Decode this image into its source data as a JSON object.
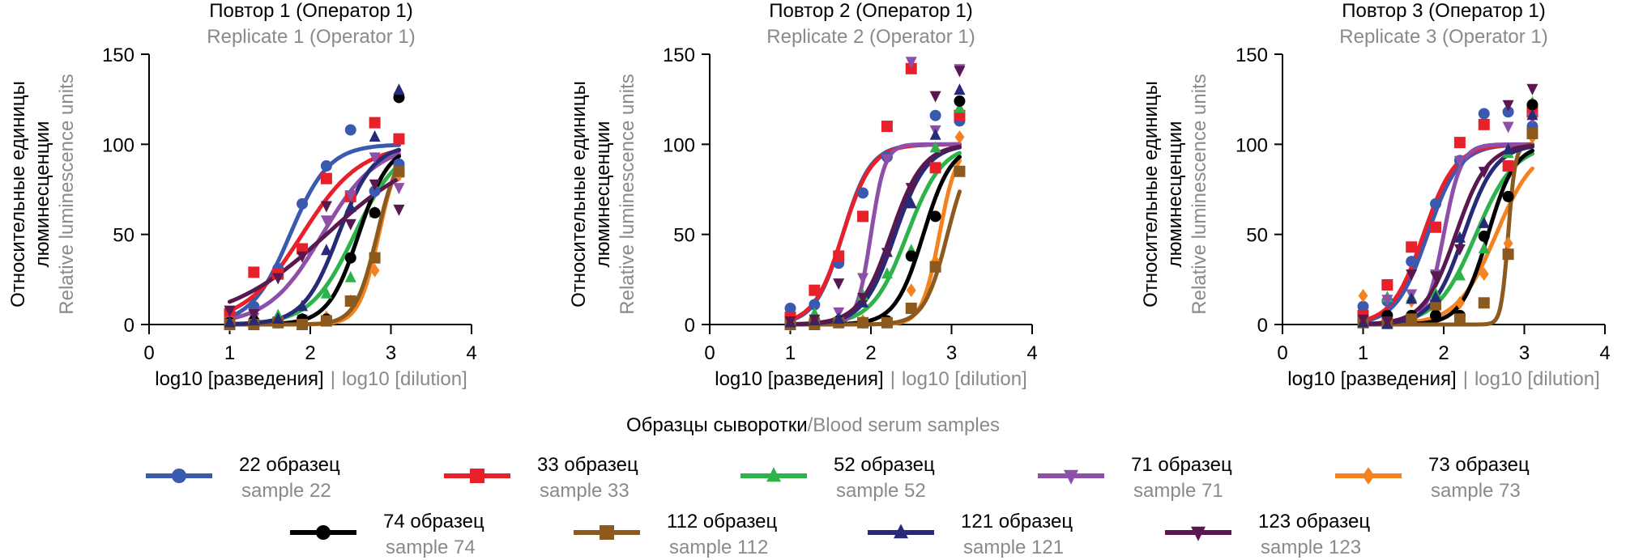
{
  "chart_data": [
    {
      "type": "line",
      "title": "Повтор 1 (Оператор 1)",
      "subtitle": "Replicate 1 (Operator 1)",
      "ylabel": "Относительные единицы люминесценции",
      "ylabel2": "Relative luminescence units",
      "xlabel": "log10 [разведения]",
      "xlabel2": "log10 [dilution]",
      "xlim": [
        0,
        4
      ],
      "ylim": [
        0,
        150
      ],
      "xticks": [
        "0",
        "1",
        "2",
        "3",
        "4"
      ],
      "yticks": [
        "0",
        "50",
        "100",
        "150"
      ],
      "series": [
        {
          "id": "s22",
          "fit": {
            "ec50": 1.75,
            "hill": 1.8
          },
          "x": [
            1,
            1.3,
            1.6,
            1.9,
            2.2,
            2.5,
            2.8,
            3.1
          ],
          "y": [
            3,
            10,
            31,
            67,
            88,
            108,
            74,
            89
          ]
        },
        {
          "id": "s33",
          "fit": {
            "ec50": 1.9,
            "hill": 1.2
          },
          "x": [
            1,
            1.3,
            1.6,
            1.9,
            2.2,
            2.5,
            2.8,
            3.1
          ],
          "y": [
            6,
            29,
            28,
            42,
            81,
            71,
            112,
            103
          ]
        },
        {
          "id": "s52",
          "fit": {
            "ec50": 2.55,
            "hill": 1.6
          },
          "x": [
            1,
            1.3,
            1.6,
            1.9,
            2.2,
            2.5,
            2.8,
            3.1
          ],
          "y": [
            1,
            1,
            5,
            3,
            17,
            26,
            62,
            84
          ]
        },
        {
          "id": "s71",
          "fit": {
            "ec50": 2.15,
            "hill": 1.3
          },
          "x": [
            1,
            1.3,
            1.6,
            1.9,
            2.2,
            2.5,
            2.8,
            3.1
          ],
          "y": [
            2,
            4,
            2,
            3,
            58,
            72,
            93,
            76
          ]
        },
        {
          "id": "s73",
          "fit": {
            "ec50": 2.85,
            "hill": 3.5
          },
          "x": [
            1,
            1.3,
            1.6,
            1.9,
            2.2,
            2.5,
            2.8,
            3.1
          ],
          "y": [
            0,
            1,
            2,
            1,
            4,
            13,
            30,
            83
          ]
        },
        {
          "id": "s74",
          "fit": {
            "ec50": 2.6,
            "hill": 2.3
          },
          "x": [
            1,
            1.3,
            1.6,
            1.9,
            2.2,
            2.5,
            2.8,
            3.1
          ],
          "y": [
            1,
            2,
            1,
            3,
            3,
            37,
            62,
            126
          ]
        },
        {
          "id": "s112",
          "fit": {
            "ec50": 2.83,
            "hill": 3.2
          },
          "x": [
            1,
            1.3,
            1.6,
            1.9,
            2.2,
            2.5,
            2.8,
            3.1
          ],
          "y": [
            0,
            0,
            1,
            0,
            2,
            13,
            37,
            85
          ]
        },
        {
          "id": "s121",
          "fit": {
            "ec50": 2.35,
            "hill": 2.0
          },
          "x": [
            1,
            1.3,
            1.6,
            1.9,
            2.2,
            2.5,
            2.8,
            3.1
          ],
          "y": [
            1,
            2,
            3,
            10,
            41,
            65,
            104,
            130
          ]
        },
        {
          "id": "s123",
          "fit": {
            "ec50": 2.2,
            "hill": 0.7
          },
          "x": [
            1,
            1.3,
            1.6,
            1.9,
            2.2,
            2.5,
            2.8,
            3.1
          ],
          "y": [
            8,
            6,
            26,
            38,
            66,
            56,
            78,
            64
          ]
        }
      ]
    },
    {
      "type": "line",
      "title": "Повтор 2 (Оператор 1)",
      "subtitle": "Replicate 2 (Operator 1)",
      "ylabel": "Относительные единицы люминесценции",
      "ylabel2": "Relative luminescence units",
      "xlabel": "log10 [разведения]",
      "xlabel2": "log10 [dilution]",
      "xlim": [
        0,
        4
      ],
      "ylim": [
        0,
        150
      ],
      "xticks": [
        "0",
        "1",
        "2",
        "3",
        "4"
      ],
      "yticks": [
        "0",
        "50",
        "100",
        "150"
      ],
      "series": [
        {
          "id": "s22",
          "fit": {
            "ec50": 1.65,
            "hill": 2.5
          },
          "x": [
            1,
            1.3,
            1.6,
            1.9,
            2.2,
            2.5,
            2.8,
            3.1
          ],
          "y": [
            9,
            11,
            34,
            73,
            93,
            null,
            116,
            113
          ]
        },
        {
          "id": "s33",
          "fit": {
            "ec50": 1.65,
            "hill": 2.4
          },
          "x": [
            1,
            1.3,
            1.6,
            1.9,
            2.2,
            2.5,
            2.8,
            3.1
          ],
          "y": [
            4,
            19,
            38,
            60,
            110,
            142,
            87,
            116
          ]
        },
        {
          "id": "s52",
          "fit": {
            "ec50": 2.45,
            "hill": 2.0
          },
          "x": [
            1,
            1.3,
            1.6,
            1.9,
            2.2,
            2.5,
            2.8,
            3.1
          ],
          "y": [
            0,
            6,
            4,
            16,
            28,
            41,
            98,
            120
          ]
        },
        {
          "id": "s71",
          "fit": {
            "ec50": 2.0,
            "hill": 5.0
          },
          "x": [
            1,
            1.3,
            1.6,
            1.9,
            2.2,
            2.5,
            2.8,
            3.1
          ],
          "y": [
            2,
            1,
            7,
            26,
            92,
            146,
            108,
            142
          ]
        },
        {
          "id": "s73",
          "fit": {
            "ec50": 2.85,
            "hill": 4.0
          },
          "x": [
            1,
            1.3,
            1.6,
            1.9,
            2.2,
            2.5,
            2.8,
            3.1
          ],
          "y": [
            0,
            1,
            2,
            2,
            2,
            19,
            35,
            104
          ]
        },
        {
          "id": "s74",
          "fit": {
            "ec50": 2.65,
            "hill": 2.5
          },
          "x": [
            1,
            1.3,
            1.6,
            1.9,
            2.2,
            2.5,
            2.8,
            3.1
          ],
          "y": [
            1,
            1,
            2,
            1,
            2,
            38,
            60,
            124
          ]
        },
        {
          "id": "s112",
          "fit": {
            "ec50": 2.95,
            "hill": 3.0
          },
          "x": [
            1,
            1.3,
            1.6,
            1.9,
            2.2,
            2.5,
            2.8,
            3.1
          ],
          "y": [
            0,
            0,
            1,
            1,
            1,
            9,
            32,
            85
          ]
        },
        {
          "id": "s121",
          "fit": {
            "ec50": 2.3,
            "hill": 2.2
          },
          "x": [
            1,
            1.3,
            1.6,
            1.9,
            2.2,
            2.5,
            2.8,
            3.1
          ],
          "y": [
            1,
            2,
            3,
            12,
            40,
            67,
            105,
            130
          ]
        },
        {
          "id": "s123",
          "fit": {
            "ec50": 2.25,
            "hill": 2.2
          },
          "x": [
            1,
            1.3,
            1.6,
            1.9,
            2.2,
            2.5,
            2.8,
            3.1
          ],
          "y": [
            2,
            3,
            23,
            15,
            40,
            76,
            127,
            141
          ]
        }
      ]
    },
    {
      "type": "line",
      "title": "Повтор 3 (Оператор 1)",
      "subtitle": "Replicate 3 (Operator 1)",
      "ylabel": "Относительные единицы люминесценции",
      "ylabel2": "Relative luminescence units",
      "xlabel": "log10 [разведения]",
      "xlabel2": "log10 [dilution]",
      "xlim": [
        0,
        4
      ],
      "ylim": [
        0,
        150
      ],
      "xticks": [
        "0",
        "1",
        "2",
        "3",
        "4"
      ],
      "yticks": [
        "0",
        "50",
        "100",
        "150"
      ],
      "series": [
        {
          "id": "s22",
          "fit": {
            "ec50": 1.8,
            "hill": 2.2
          },
          "x": [
            1,
            1.3,
            1.6,
            1.9,
            2.2,
            2.5,
            2.8,
            3.1
          ],
          "y": [
            10,
            13,
            35,
            67,
            91,
            117,
            118,
            110
          ]
        },
        {
          "id": "s33",
          "fit": {
            "ec50": 1.75,
            "hill": 2.2
          },
          "x": [
            1,
            1.3,
            1.6,
            1.9,
            2.2,
            2.5,
            2.8,
            3.1
          ],
          "y": [
            5,
            22,
            43,
            54,
            101,
            111,
            88,
            118
          ]
        },
        {
          "id": "s52",
          "fit": {
            "ec50": 2.4,
            "hill": 1.8
          },
          "x": [
            1,
            1.3,
            1.6,
            1.9,
            2.2,
            2.5,
            2.8,
            3.1
          ],
          "y": [
            1,
            15,
            15,
            17,
            27,
            42,
            95,
            123
          ]
        },
        {
          "id": "s71",
          "fit": {
            "ec50": 2.0,
            "hill": 4.0
          },
          "x": [
            1,
            1.3,
            1.6,
            1.9,
            2.2,
            2.5,
            2.8,
            3.1
          ],
          "y": [
            3,
            14,
            17,
            28,
            91,
            null,
            110,
            115
          ]
        },
        {
          "id": "s73",
          "fit": {
            "ec50": 2.65,
            "hill": 1.8
          },
          "x": [
            1,
            1.3,
            1.6,
            1.9,
            2.2,
            2.5,
            2.8,
            3.1
          ],
          "y": [
            16,
            3,
            13,
            7,
            12,
            28,
            45,
            104
          ]
        },
        {
          "id": "s74",
          "fit": {
            "ec50": 2.55,
            "hill": 2.6
          },
          "x": [
            1,
            1.3,
            1.6,
            1.9,
            2.2,
            2.5,
            2.8,
            3.1
          ],
          "y": [
            2,
            5,
            5,
            5,
            5,
            49,
            71,
            122
          ]
        },
        {
          "id": "s112",
          "fit": {
            "ec50": 2.8,
            "hill": 10.0
          },
          "x": [
            1,
            1.3,
            1.6,
            1.9,
            2.2,
            2.5,
            2.8,
            3.1
          ],
          "y": [
            1,
            1,
            3,
            11,
            3,
            12,
            39,
            106
          ]
        },
        {
          "id": "s121",
          "fit": {
            "ec50": 2.25,
            "hill": 2.2
          },
          "x": [
            1,
            1.3,
            1.6,
            1.9,
            2.2,
            2.5,
            2.8,
            3.1
          ],
          "y": [
            1,
            0,
            14,
            15,
            48,
            56,
            97,
            116
          ]
        },
        {
          "id": "s123",
          "fit": {
            "ec50": 2.15,
            "hill": 2.2
          },
          "x": [
            1,
            1.3,
            1.6,
            1.9,
            2.2,
            2.5,
            2.8,
            3.1
          ],
          "y": [
            3,
            2,
            28,
            27,
            42,
            85,
            122,
            131
          ]
        }
      ]
    }
  ],
  "legend": {
    "title_ru": "Образцы сыворотки",
    "separator": "/",
    "title_en": "Blood serum samples",
    "items": [
      {
        "id": "s22",
        "label_ru": "22 образец",
        "label_en": "sample 22",
        "color": "#3a5ab0",
        "marker": "circle"
      },
      {
        "id": "s33",
        "label_ru": "33 образец",
        "label_en": "sample 33",
        "color": "#e8202a",
        "marker": "square"
      },
      {
        "id": "s52",
        "label_ru": "52 образец",
        "label_en": "sample 52",
        "color": "#2db34a",
        "marker": "triangle-up"
      },
      {
        "id": "s71",
        "label_ru": "71 образец",
        "label_en": "sample 71",
        "color": "#8e4fa8",
        "marker": "triangle-down"
      },
      {
        "id": "s73",
        "label_ru": "73 образец",
        "label_en": "sample 73",
        "color": "#f58220",
        "marker": "diamond"
      },
      {
        "id": "s74",
        "label_ru": "74 образец",
        "label_en": "sample 74",
        "color": "#000000",
        "marker": "circle"
      },
      {
        "id": "s112",
        "label_ru": "112 образец",
        "label_en": "sample 112",
        "color": "#8c5a1e",
        "marker": "square"
      },
      {
        "id": "s121",
        "label_ru": "121 образец",
        "label_en": "sample 121",
        "color": "#262a78",
        "marker": "triangle-up"
      },
      {
        "id": "s123",
        "label_ru": "123 образец",
        "label_en": "sample 123",
        "color": "#5a1850",
        "marker": "triangle-down"
      }
    ]
  }
}
